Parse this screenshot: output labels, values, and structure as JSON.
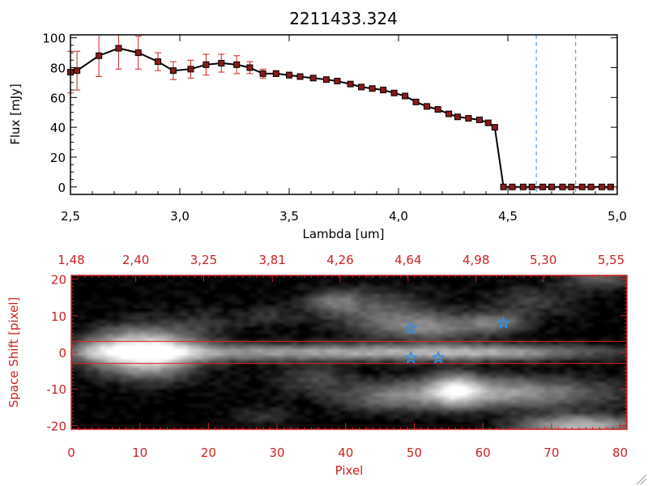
{
  "chart_data": [
    {
      "type": "line",
      "title": "2211433.324",
      "xlabel": "Lambda [um]",
      "ylabel": "Flux [mJy]",
      "xlim": [
        2.5,
        5.0
      ],
      "ylim": [
        -5,
        102
      ],
      "xticks": [
        2.5,
        3.0,
        3.5,
        4.0,
        4.5,
        5.0
      ],
      "xtick_labels": [
        "2,5",
        "3,0",
        "3,5",
        "4,0",
        "4,5",
        "5,0"
      ],
      "yticks": [
        0,
        20,
        40,
        60,
        80,
        100
      ],
      "ytick_labels": [
        "0",
        "20",
        "40",
        "60",
        "80",
        "100"
      ],
      "series": [
        {
          "name": "flux",
          "line_color": "#000000",
          "marker_color": "#8b1a1a",
          "errorbar_color": "#d42020",
          "x": [
            2.5,
            2.53,
            2.63,
            2.72,
            2.81,
            2.9,
            2.97,
            3.05,
            3.12,
            3.19,
            3.26,
            3.32,
            3.38,
            3.44,
            3.5,
            3.55,
            3.61,
            3.67,
            3.72,
            3.78,
            3.83,
            3.88,
            3.93,
            3.98,
            4.03,
            4.08,
            4.13,
            4.18,
            4.23,
            4.27,
            4.32,
            4.37,
            4.41,
            4.44,
            4.48,
            4.52,
            4.57,
            4.61,
            4.66,
            4.7,
            4.75,
            4.79,
            4.84,
            4.88,
            4.93,
            4.97
          ],
          "y": [
            77,
            78,
            88,
            93,
            90,
            84,
            78,
            79,
            82,
            83,
            82,
            80,
            76,
            76,
            75,
            74,
            73,
            72,
            71,
            69,
            67,
            66,
            65,
            63,
            61,
            57,
            54,
            52,
            49,
            47,
            46,
            45,
            43,
            40,
            0,
            0,
            0,
            0,
            0,
            0,
            0,
            0,
            0,
            0,
            0,
            0
          ],
          "yerr": [
            14,
            13,
            14,
            14,
            11,
            6,
            6,
            6,
            7,
            6,
            6,
            4,
            3,
            2,
            2,
            1,
            1,
            1,
            1,
            1,
            1,
            1,
            1,
            1,
            1,
            1,
            1,
            1,
            1,
            1,
            1,
            1,
            1,
            1,
            0,
            0,
            0,
            0,
            0,
            0,
            0,
            0,
            0,
            0,
            0,
            0
          ]
        }
      ],
      "vlines": [
        {
          "x": 4.63,
          "color": "#3b8fd6",
          "style": "dashed"
        },
        {
          "x": 4.81,
          "color": "#3b8fd6",
          "style": "dashed"
        }
      ],
      "hlines": [
        {
          "y": 0,
          "color": "#d42020",
          "style": "dashed"
        }
      ],
      "grid": false,
      "legend": "none"
    },
    {
      "type": "heatmap",
      "colormap": "gray",
      "axis_color": "#cc2222",
      "xlabel": "Pixel",
      "ylabel": "Space Shift [pixel]",
      "xlim": [
        0,
        81
      ],
      "ylim": [
        -21,
        21
      ],
      "xticks": [
        0,
        10,
        20,
        30,
        40,
        50,
        60,
        70,
        80
      ],
      "xtick_labels": [
        "0",
        "10",
        "20",
        "30",
        "40",
        "50",
        "60",
        "70",
        "80"
      ],
      "yticks": [
        -20,
        -10,
        0,
        10,
        20
      ],
      "ytick_labels": [
        "-20",
        "-10",
        "0",
        "10",
        "20"
      ],
      "top_axis_label_positions": [
        0,
        9.4,
        19.3,
        29.3,
        39.2,
        49.1,
        59.0,
        68.8,
        78.7
      ],
      "top_axis_labels": [
        "1,48",
        "2,40",
        "3,25",
        "3,81",
        "4,26",
        "4,64",
        "4,98",
        "5,30",
        "5,55"
      ],
      "hlines": [
        {
          "y": 3,
          "color": "#e02020"
        },
        {
          "y": -3,
          "color": "#e02020"
        }
      ],
      "markers": [
        {
          "x": 49.5,
          "y": 6.5,
          "symbol": "star",
          "color": "#2f8fe6"
        },
        {
          "x": 63.0,
          "y": 8.0,
          "symbol": "star",
          "color": "#2f8fe6"
        },
        {
          "x": 49.5,
          "y": -1.5,
          "symbol": "star",
          "color": "#2f8fe6"
        },
        {
          "x": 53.5,
          "y": -1.5,
          "symbol": "star",
          "color": "#2f8fe6"
        }
      ],
      "blobs": [
        {
          "x": 11,
          "y": 0,
          "sx": 5,
          "sy": 4.5,
          "a": 1.0
        },
        {
          "x": 36,
          "y": 0,
          "sx": 26,
          "sy": 1.6,
          "a": 0.6
        },
        {
          "x": 60,
          "y": 0,
          "sx": 10,
          "sy": 1.4,
          "a": 0.3
        },
        {
          "x": 4,
          "y": 1,
          "sx": 3,
          "sy": 3,
          "a": 0.25
        },
        {
          "x": 52,
          "y": 7,
          "sx": 6,
          "sy": 2.5,
          "a": 0.45
        },
        {
          "x": 62,
          "y": 8,
          "sx": 3,
          "sy": 2,
          "a": 0.35
        },
        {
          "x": 44,
          "y": 12,
          "sx": 6,
          "sy": 4,
          "a": 0.3
        },
        {
          "x": 61,
          "y": -11,
          "sx": 12,
          "sy": 3,
          "a": 0.6
        },
        {
          "x": 56,
          "y": -10,
          "sx": 2.5,
          "sy": 3,
          "a": 0.55
        },
        {
          "x": 74,
          "y": -20,
          "sx": 6,
          "sy": 2,
          "a": 0.7
        },
        {
          "x": 35,
          "y": -7,
          "sx": 4,
          "sy": 2.5,
          "a": 0.22
        },
        {
          "x": 28,
          "y": -17,
          "sx": 3,
          "sy": 2,
          "a": 0.15
        },
        {
          "x": 46,
          "y": -13,
          "sx": 5,
          "sy": 2.5,
          "a": 0.2
        },
        {
          "x": 67,
          "y": 14,
          "sx": 5,
          "sy": 3,
          "a": 0.2
        },
        {
          "x": 20,
          "y": 8,
          "sx": 4,
          "sy": 3,
          "a": 0.12
        },
        {
          "x": 29,
          "y": 10,
          "sx": 3,
          "sy": 2,
          "a": 0.14
        },
        {
          "x": 38,
          "y": 14,
          "sx": 2.5,
          "sy": 2,
          "a": 0.3
        },
        {
          "x": 77,
          "y": 20,
          "sx": 4,
          "sy": 2,
          "a": 0.3
        }
      ]
    }
  ]
}
